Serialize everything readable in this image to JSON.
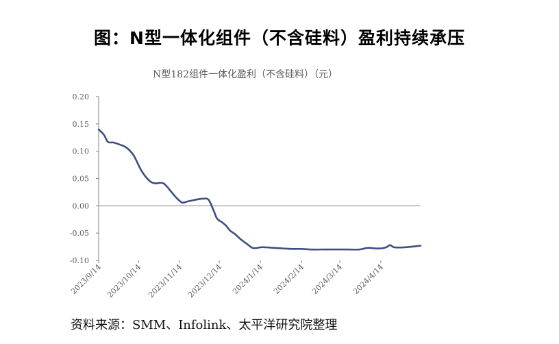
{
  "figure": {
    "title": "图：N型一体化组件（不含硅料）盈利持续承压",
    "source": "资料来源：SMM、Infolink、太平洋研究院整理"
  },
  "colors": {
    "line": "#3b4f82",
    "axis": "#808080",
    "text": "#595959"
  },
  "chart_data": {
    "type": "line",
    "title": "N型182组件一体化盈利（不含硅料）（元）",
    "xlabel": "",
    "ylabel": "",
    "ylim": [
      -0.1,
      0.2
    ],
    "yticks": [
      "0.20",
      "0.15",
      "0.10",
      "0.05",
      "0.00",
      "-0.05",
      "-0.10"
    ],
    "xlim": [
      "2023-09-14",
      "2024-05-14"
    ],
    "xticks": [
      "2023/9/14",
      "2023/10/14",
      "2023/11/14",
      "2023/12/14",
      "2024/1/14",
      "2024/2/14",
      "2024/3/14",
      "2024/4/14"
    ],
    "grid": false,
    "legend": "none",
    "series": [
      {
        "x": [
          "2023-09-14",
          "2023-09-18",
          "2023-09-21",
          "2023-09-25",
          "2023-09-29",
          "2023-10-04",
          "2023-10-08",
          "2023-10-11",
          "2023-10-15",
          "2023-10-18",
          "2023-10-21",
          "2023-10-24",
          "2023-10-27",
          "2023-10-30",
          "2023-11-02",
          "2023-11-05",
          "2023-11-08",
          "2023-11-12",
          "2023-11-16",
          "2023-11-20",
          "2023-11-24",
          "2023-11-28",
          "2023-12-02",
          "2023-12-06",
          "2023-12-10",
          "2023-12-12",
          "2023-12-14",
          "2023-12-16",
          "2023-12-19",
          "2023-12-22",
          "2023-12-26",
          "2023-12-30",
          "2024-01-04",
          "2024-01-08",
          "2024-01-12",
          "2024-01-14",
          "2024-01-18",
          "2024-01-24",
          "2024-01-31",
          "2024-02-07",
          "2024-02-14",
          "2024-02-21",
          "2024-03-01",
          "2024-03-10",
          "2024-03-20",
          "2024-03-29",
          "2024-04-04",
          "2024-04-10",
          "2024-04-14",
          "2024-04-18",
          "2024-04-21",
          "2024-04-24",
          "2024-05-02",
          "2024-05-14"
        ],
        "values": [
          0.14,
          0.13,
          0.117,
          0.116,
          0.113,
          0.108,
          0.1,
          0.09,
          0.07,
          0.058,
          0.049,
          0.043,
          0.041,
          0.042,
          0.041,
          0.034,
          0.025,
          0.014,
          0.006,
          0.008,
          0.01,
          0.012,
          0.013,
          0.011,
          -0.01,
          -0.022,
          -0.027,
          -0.03,
          -0.036,
          -0.045,
          -0.052,
          -0.061,
          -0.07,
          -0.077,
          -0.077,
          -0.076,
          -0.076,
          -0.077,
          -0.078,
          -0.079,
          -0.079,
          -0.08,
          -0.08,
          -0.08,
          -0.08,
          -0.08,
          -0.077,
          -0.078,
          -0.078,
          -0.076,
          -0.072,
          -0.076,
          -0.076,
          -0.073
        ]
      }
    ]
  }
}
